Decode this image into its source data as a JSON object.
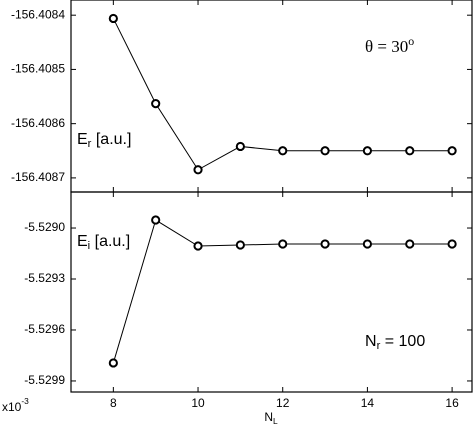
{
  "chart_data": [
    {
      "type": "line",
      "x": [
        8,
        9,
        10,
        11,
        12,
        13,
        14,
        15,
        16
      ],
      "series": [
        {
          "name": "Er",
          "color": "#000000",
          "values": [
            -156.408406,
            -156.408563,
            -156.408685,
            -156.408642,
            -156.40865,
            -156.40865,
            -156.40865,
            -156.40865,
            -156.40865
          ]
        }
      ],
      "xlim": [
        7,
        16.47
      ],
      "xticks": [
        8,
        10,
        12,
        14,
        16
      ],
      "ylim": [
        -156.408726,
        -156.408372
      ],
      "yticks": [
        -156.4084,
        -156.4085,
        -156.4086,
        -156.4087
      ],
      "y_label": {
        "main": "E",
        "sub": "r",
        "rest": " [a.u.]"
      },
      "annotation": {
        "main": "θ = 30",
        "sup": "o"
      }
    },
    {
      "type": "line",
      "x": [
        8,
        9,
        10,
        11,
        12,
        13,
        14,
        15,
        16
      ],
      "series": [
        {
          "name": "Ei",
          "color": "#000000",
          "values": [
            -5.529794,
            -5.528953,
            -5.529106,
            -5.5291,
            -5.529094,
            -5.529094,
            -5.529094,
            -5.529094,
            -5.529094
          ]
        }
      ],
      "xlim": [
        7,
        16.47
      ],
      "xticks": [
        8,
        10,
        12,
        14,
        16
      ],
      "ylim": [
        -5.529965,
        -5.528788
      ],
      "yticks": [
        {
          "value": -5.529,
          "label": "-5.5290"
        },
        {
          "value": -5.5293,
          "label": "-5.5293"
        },
        {
          "value": -5.5296,
          "label": "-5.5296"
        },
        {
          "value": -5.5299,
          "label": "-5.5299"
        }
      ],
      "y_label": {
        "main": "E",
        "sub": "i",
        "rest": " [a.u.]"
      },
      "annotation": {
        "main": "N",
        "sub": "r",
        "rest": " = 100"
      },
      "x_label": {
        "main": "N",
        "sub": "L"
      },
      "offset_label": {
        "main": "x10",
        "sup": "-3"
      }
    }
  ]
}
